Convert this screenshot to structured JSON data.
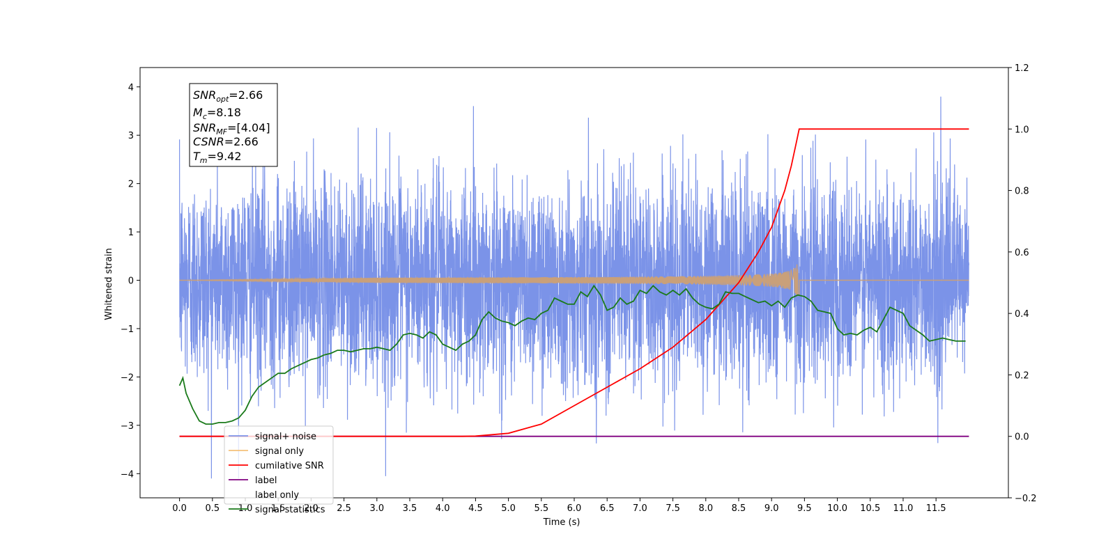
{
  "chart_data": {
    "type": "line",
    "title": "",
    "xlabel": "Time (s)",
    "ylabel": "Whitened strain",
    "ylabel_right": "",
    "xlim": [
      -0.6,
      12.6
    ],
    "ylim": [
      -4.5,
      4.4
    ],
    "ylim_right": [
      -0.2,
      1.2
    ],
    "x_ticks": [
      "0.0",
      "0.5",
      "1.0",
      "1.5",
      "2.0",
      "2.5",
      "3.0",
      "3.5",
      "4.0",
      "4.5",
      "5.0",
      "5.5",
      "6.0",
      "6.5",
      "7.0",
      "7.5",
      "8.0",
      "8.5",
      "9.0",
      "9.5",
      "10.0",
      "10.5",
      "11.0",
      "11.5"
    ],
    "y_ticks": [
      "4",
      "3",
      "2",
      "1",
      "0",
      "−1",
      "−2",
      "−3",
      "−4"
    ],
    "y_ticks_right": [
      "1.2",
      "1.0",
      "0.8",
      "0.6",
      "0.4",
      "0.2",
      "0.0",
      "−0.2"
    ],
    "grid": false,
    "legend_position": "lower-left",
    "stats_box": {
      "snr_opt": "2.66",
      "mc": "8.18",
      "snr_mf": "[4.04]",
      "csnr": "2.66",
      "tm": "9.42"
    },
    "series": [
      {
        "name": "signal+ noise",
        "color": "#7b93e8",
        "axis": "left",
        "noise_std": 1.0,
        "x_range": [
          0,
          12
        ]
      },
      {
        "name": "signal only",
        "color": "#f5c07a",
        "axis": "left",
        "chirp_end": 9.42,
        "chirp_peak_amplitude": 0.35
      },
      {
        "name": "cumilative SNR",
        "color": "#ff0000",
        "axis": "right",
        "x": [
          0,
          4.3,
          4.5,
          5.0,
          5.5,
          6.0,
          6.5,
          7.0,
          7.5,
          8.0,
          8.5,
          8.8,
          9.0,
          9.2,
          9.3,
          9.38,
          9.42,
          12.0
        ],
        "values": [
          0,
          0,
          0.001,
          0.01,
          0.04,
          0.1,
          0.16,
          0.22,
          0.29,
          0.38,
          0.5,
          0.6,
          0.68,
          0.8,
          0.88,
          0.96,
          1.0,
          1.0
        ]
      },
      {
        "name": "label",
        "color": "#800080",
        "axis": "right",
        "x": [
          0,
          12
        ],
        "values": [
          0,
          0
        ]
      },
      {
        "name": "label only",
        "color": "#808080",
        "axis": "right",
        "hidden": true
      },
      {
        "name": "signal statistics",
        "color": "#1a7a1a",
        "axis": "right",
        "x": [
          0,
          0.05,
          0.1,
          0.2,
          0.3,
          0.4,
          0.5,
          0.6,
          0.7,
          0.8,
          0.9,
          1.0,
          1.1,
          1.2,
          1.3,
          1.4,
          1.5,
          1.6,
          1.7,
          1.8,
          1.9,
          2.0,
          2.1,
          2.2,
          2.3,
          2.4,
          2.5,
          2.6,
          2.7,
          2.8,
          2.9,
          3.0,
          3.1,
          3.2,
          3.3,
          3.4,
          3.5,
          3.6,
          3.7,
          3.8,
          3.9,
          4.0,
          4.1,
          4.2,
          4.3,
          4.4,
          4.5,
          4.6,
          4.7,
          4.8,
          4.9,
          5.0,
          5.1,
          5.2,
          5.3,
          5.4,
          5.5,
          5.6,
          5.7,
          5.8,
          5.9,
          6.0,
          6.1,
          6.2,
          6.3,
          6.4,
          6.5,
          6.6,
          6.7,
          6.8,
          6.9,
          7.0,
          7.1,
          7.2,
          7.3,
          7.4,
          7.5,
          7.6,
          7.7,
          7.8,
          7.9,
          8.0,
          8.1,
          8.2,
          8.3,
          8.4,
          8.5,
          8.6,
          8.7,
          8.8,
          8.9,
          9.0,
          9.1,
          9.2,
          9.3,
          9.4,
          9.5,
          9.6,
          9.7,
          9.8,
          9.9,
          10.0,
          10.1,
          10.2,
          10.3,
          10.4,
          10.5,
          10.6,
          10.7,
          10.8,
          10.9,
          11.0,
          11.1,
          11.2,
          11.3,
          11.4,
          11.5,
          11.6,
          11.7,
          11.8,
          11.9,
          11.95
        ],
        "values": [
          0.165,
          0.19,
          0.14,
          0.09,
          0.05,
          0.04,
          0.04,
          0.045,
          0.045,
          0.05,
          0.06,
          0.085,
          0.13,
          0.16,
          0.175,
          0.19,
          0.205,
          0.205,
          0.22,
          0.23,
          0.24,
          0.25,
          0.255,
          0.265,
          0.27,
          0.28,
          0.28,
          0.275,
          0.28,
          0.285,
          0.285,
          0.29,
          0.285,
          0.28,
          0.3,
          0.33,
          0.335,
          0.33,
          0.32,
          0.34,
          0.33,
          0.3,
          0.29,
          0.28,
          0.3,
          0.31,
          0.33,
          0.38,
          0.405,
          0.385,
          0.375,
          0.37,
          0.36,
          0.375,
          0.385,
          0.38,
          0.4,
          0.41,
          0.45,
          0.44,
          0.43,
          0.43,
          0.47,
          0.455,
          0.49,
          0.46,
          0.41,
          0.42,
          0.45,
          0.43,
          0.44,
          0.475,
          0.465,
          0.49,
          0.47,
          0.46,
          0.475,
          0.46,
          0.48,
          0.45,
          0.43,
          0.42,
          0.415,
          0.43,
          0.47,
          0.465,
          0.465,
          0.455,
          0.445,
          0.435,
          0.44,
          0.425,
          0.44,
          0.42,
          0.45,
          0.46,
          0.455,
          0.44,
          0.41,
          0.405,
          0.4,
          0.35,
          0.33,
          0.335,
          0.33,
          0.345,
          0.355,
          0.34,
          0.38,
          0.42,
          0.41,
          0.4,
          0.36,
          0.345,
          0.33,
          0.31,
          0.315,
          0.32,
          0.315,
          0.31,
          0.31,
          0.31
        ]
      }
    ]
  }
}
